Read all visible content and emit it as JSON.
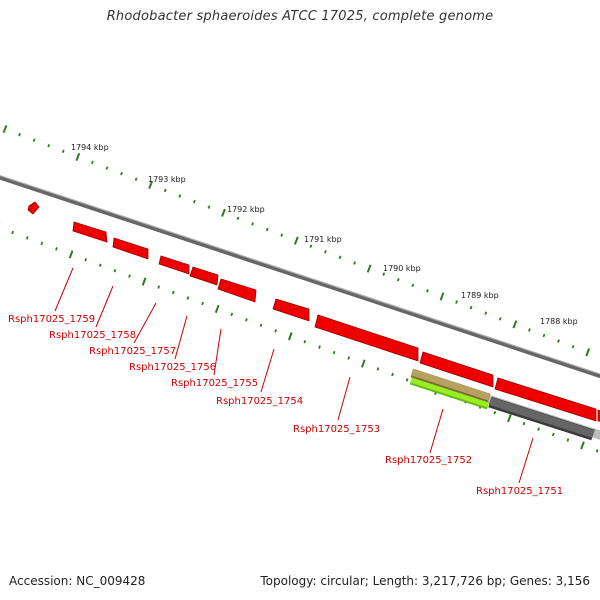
{
  "title": "Rhodobacter sphaeroides ATCC 17025, complete genome",
  "footer": {
    "accession": "Accession: NC_009428",
    "summary": "Topology: circular; Length: 3,217,726 bp; Genes: 3,156"
  },
  "colors": {
    "gene_fill": "#ee0000",
    "label_red": "#cc0000",
    "backbone_gray": "#888888",
    "tick_green": "#2f7a1f",
    "feature_tan": "#b8a060",
    "feature_lime": "#99ee22",
    "feature_dark": "#555555"
  },
  "scale_labels": [
    "1794 kbp",
    "1793 kbp",
    "1792 kbp",
    "1791 kbp",
    "1790 kbp",
    "1789 kbp",
    "1788 kbp"
  ],
  "genes": [
    {
      "label": "Rsph17025_1759"
    },
    {
      "label": "Rsph17025_1758"
    },
    {
      "label": "Rsph17025_1757"
    },
    {
      "label": "Rsph17025_1756"
    },
    {
      "label": "Rsph17025_1755"
    },
    {
      "label": "Rsph17025_1754"
    },
    {
      "label": "Rsph17025_1753"
    },
    {
      "label": "Rsph17025_1752"
    },
    {
      "label": "Rsph17025_1751"
    }
  ]
}
